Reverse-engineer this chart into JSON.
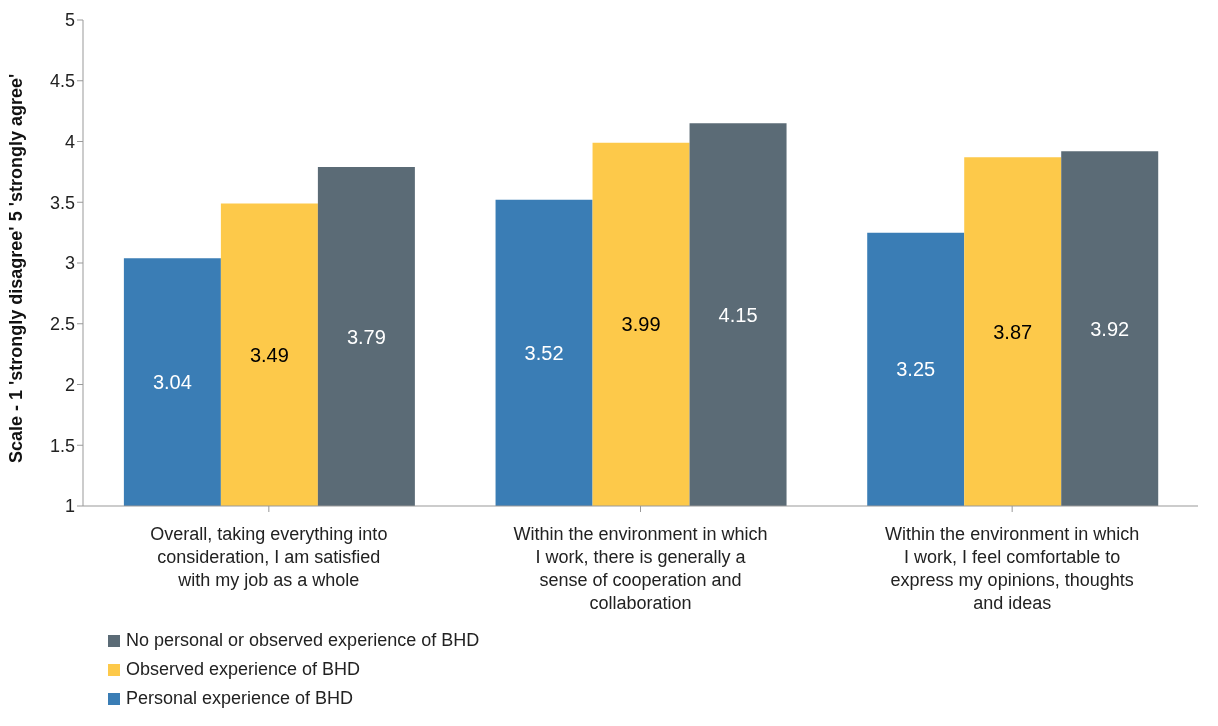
{
  "chart_data": {
    "type": "bar",
    "ylabel": "Scale - 1 'strongly disagree' 5 'strongly agree'",
    "categories": [
      "Overall, taking everything into consideration, I am satisfied with my job as a whole",
      "Within the environment in which I work, there is generally a sense of cooperation and collaboration",
      "Within the environment in which I work, I feel comfortable to express my opinions, thoughts and ideas"
    ],
    "series": [
      {
        "name": "Personal experience of BHD",
        "color": "#3a7db5",
        "values": [
          3.04,
          3.52,
          3.25
        ]
      },
      {
        "name": "Observed experience of BHD",
        "color": "#fdc94a",
        "values": [
          3.49,
          3.99,
          3.87
        ]
      },
      {
        "name": "No personal or observed experience of BHD",
        "color": "#5b6b76",
        "values": [
          3.79,
          4.15,
          3.92
        ]
      }
    ],
    "ylim": [
      1,
      5
    ],
    "yticks": [
      1,
      1.5,
      2,
      2.5,
      3,
      3.5,
      4,
      4.5,
      5
    ],
    "grid": false,
    "legend": "bottom",
    "data_labels": true
  }
}
